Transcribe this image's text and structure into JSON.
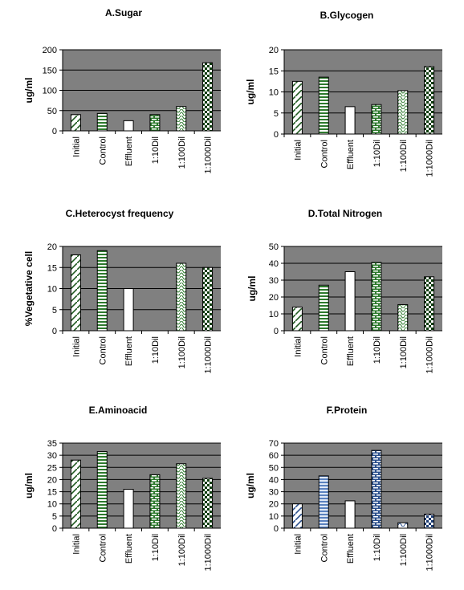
{
  "chart_data": [
    {
      "type": "bar",
      "title": "A.Sugar",
      "ylabel": "ug/ml",
      "categories": [
        "Initial",
        "Control",
        "Effluent",
        "1:10Dil",
        "1:100Dil",
        "1:1000Dil"
      ],
      "values": [
        40,
        43,
        25,
        40,
        60,
        168
      ],
      "ylim": [
        0,
        200
      ],
      "yticks": [
        0,
        50,
        100,
        150,
        200
      ],
      "plot_background": "#808080"
    },
    {
      "type": "bar",
      "title": "B.Glycogen",
      "ylabel": "ug/ml",
      "categories": [
        "Initial",
        "Control",
        "Effluent",
        "1:10Dil",
        "1:100Dil",
        "1:1000Dil"
      ],
      "values": [
        12.5,
        13.5,
        6.5,
        7,
        10.3,
        16
      ],
      "ylim": [
        0,
        20
      ],
      "yticks": [
        0,
        5,
        10,
        15,
        20
      ],
      "plot_background": "#808080"
    },
    {
      "type": "bar",
      "title": "C.Heterocyst frequency",
      "ylabel": "%Vegetative cell",
      "categories": [
        "Initial",
        "Control",
        "Effluent",
        "1:10Dil",
        "1:100Dil",
        "1:1000Dil"
      ],
      "values": [
        18,
        19,
        10,
        0,
        16,
        15
      ],
      "ylim": [
        0,
        20
      ],
      "yticks": [
        0,
        5,
        10,
        15,
        20
      ],
      "plot_background": "#808080"
    },
    {
      "type": "bar",
      "title": "D.Total Nitrogen",
      "ylabel": "ug/ml",
      "categories": [
        "Initial",
        "Control",
        "Effluent",
        "1:10Dil",
        "1:100Dil",
        "1:1000Dil"
      ],
      "values": [
        14,
        27,
        35,
        40.5,
        15.5,
        32
      ],
      "ylim": [
        0,
        50
      ],
      "yticks": [
        0,
        10,
        20,
        30,
        40,
        50
      ],
      "plot_background": "#808080"
    },
    {
      "type": "bar",
      "title": "E.Aminoacid",
      "ylabel": "ug/ml",
      "categories": [
        "Initial",
        "Control",
        "Effluent",
        "1:10Dil",
        "1:100Dil",
        "1:1000Dil"
      ],
      "values": [
        28,
        31.5,
        16,
        22,
        26.5,
        20.5
      ],
      "ylim": [
        0,
        35
      ],
      "yticks": [
        0,
        5,
        10,
        15,
        20,
        25,
        30,
        35
      ],
      "plot_background": "#808080"
    },
    {
      "type": "bar",
      "title": "F.Protein",
      "ylabel": "ug/ml",
      "categories": [
        "Initial",
        "Control",
        "Effluent",
        "1:10Dil",
        "1:100Dil",
        "1:1000Dil"
      ],
      "values": [
        20,
        43,
        22.5,
        64,
        4.5,
        11.5
      ],
      "ylim": [
        0,
        70
      ],
      "yticks": [
        0,
        10,
        20,
        30,
        40,
        50,
        60,
        70
      ],
      "plot_background": "#808080"
    }
  ],
  "bar_patterns": [
    "diag-green",
    "hstripe-green",
    "plain-white",
    "brick-green",
    "wave-green",
    "checker-green"
  ],
  "protein_bar_patterns": [
    "diag-blue",
    "hstripe-blue",
    "plain-white",
    "brick-blue",
    "wave-blue",
    "checker-blue"
  ],
  "colors": {
    "plot_bg": "#808080",
    "green": "#1f5a1f",
    "blue": "#2a4f8c",
    "bar_fill": "#ffffff"
  }
}
